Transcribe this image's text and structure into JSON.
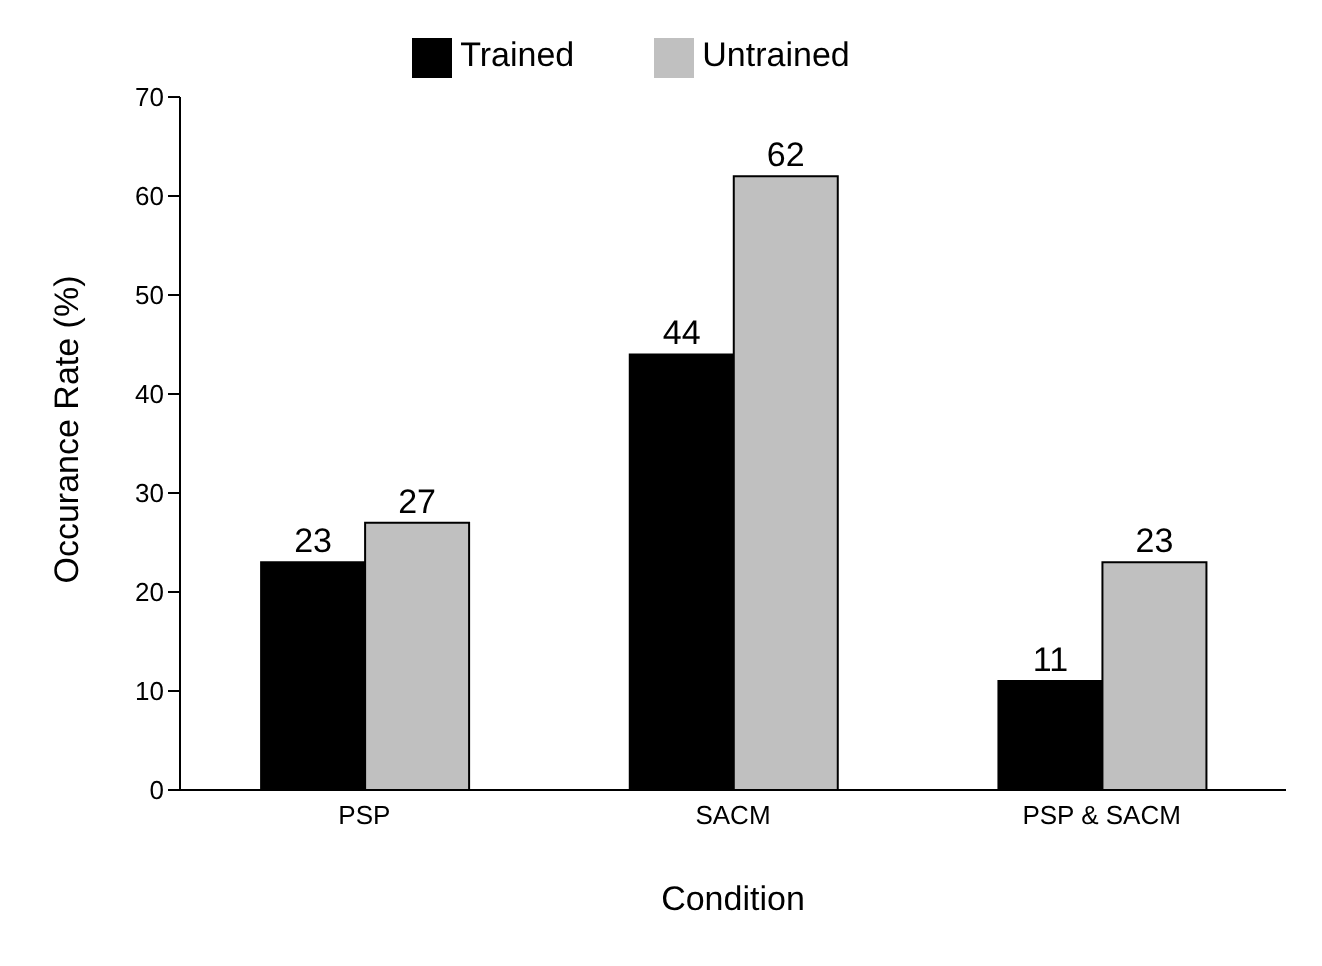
{
  "chart_data": {
    "type": "bar",
    "xlabel": "Condition",
    "ylabel": "Occurance Rate (%)",
    "categories": [
      "PSP",
      "SACM",
      "PSP & SACM"
    ],
    "series": [
      {
        "name": "Trained",
        "color": "#000000",
        "values": [
          23,
          44,
          11
        ]
      },
      {
        "name": "Untrained",
        "color": "#c0c0c0",
        "values": [
          27,
          62,
          23
        ]
      }
    ],
    "ylim": [
      0,
      70
    ],
    "yticks": [
      0,
      10,
      20,
      30,
      40,
      50,
      60,
      70
    ],
    "grid": false,
    "legend": "top",
    "data_labels": true
  }
}
